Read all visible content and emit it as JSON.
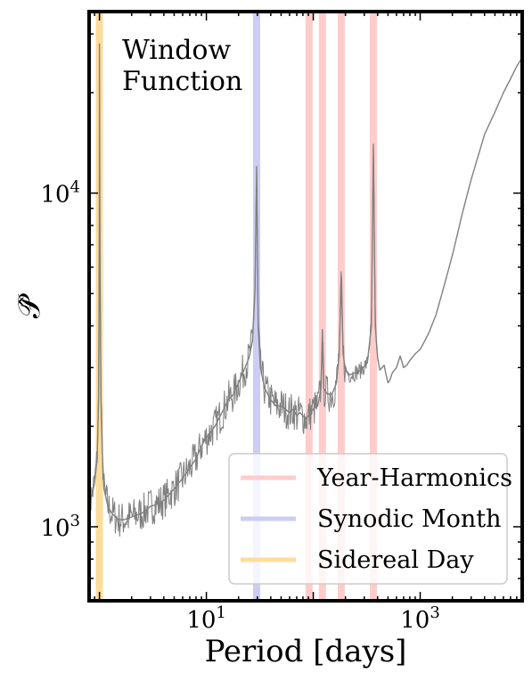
{
  "chart_data": {
    "type": "line",
    "title": "",
    "xlabel": "Period [days]",
    "ylabel": "𝒫̂",
    "xscale": "log",
    "yscale": "log",
    "xlim": [
      0.8,
      9000
    ],
    "ylim": [
      600,
      35000
    ],
    "grid": false,
    "x_ticks": [
      {
        "value": 10,
        "base": "10",
        "exp": "1"
      },
      {
        "value": 1000,
        "base": "10",
        "exp": "3"
      }
    ],
    "y_ticks": [
      {
        "value": 1000,
        "base": "10",
        "exp": "3"
      },
      {
        "value": 10000,
        "base": "10",
        "exp": "4"
      }
    ],
    "annotation": {
      "lines": [
        "Window",
        "Function"
      ]
    },
    "legend": {
      "position": "bottom-right",
      "entries": [
        {
          "label": "Year-Harmonics",
          "color": "#ffcccc"
        },
        {
          "label": "Synodic Month",
          "color": "#ccccf5"
        },
        {
          "label": "Sidereal Day",
          "color": "#fddc9c"
        }
      ]
    },
    "vertical_bands": [
      {
        "group": "Sidereal Day",
        "color": "#fddc9c",
        "x": 0.9973
      },
      {
        "group": "Synodic Month",
        "color": "#ccccf5",
        "x": 29.53
      },
      {
        "group": "Year-Harmonics",
        "color": "#ffcccc",
        "x": 91.3
      },
      {
        "group": "Year-Harmonics",
        "color": "#ffcccc",
        "x": 121.75
      },
      {
        "group": "Year-Harmonics",
        "color": "#ffcccc",
        "x": 182.6
      },
      {
        "group": "Year-Harmonics",
        "color": "#ffcccc",
        "x": 365.25
      }
    ],
    "series": [
      {
        "color": "#808080",
        "x": [
          0.8,
          0.85,
          0.9,
          0.95,
          0.98,
          0.99,
          0.997,
          1.0,
          1.01,
          1.03,
          1.06,
          1.1,
          1.2,
          1.3,
          1.5,
          1.7,
          2.0,
          2.5,
          3.0,
          3.5,
          4.0,
          5.0,
          6.0,
          7.0,
          8.0,
          9.0,
          10.0,
          12.0,
          14.0,
          16.0,
          18.0,
          20.0,
          22.0,
          25.0,
          27.0,
          28.5,
          29.53,
          30.5,
          32.0,
          35.0,
          40.0,
          45.0,
          50.0,
          55.0,
          60.0,
          65.0,
          70.0,
          75.0,
          80.0,
          85.0,
          90.0,
          95.0,
          100.0,
          110.0,
          118.0,
          121.75,
          125.0,
          135.0,
          150.0,
          165.0,
          175.0,
          182.6,
          190.0,
          200.0,
          220.0,
          250.0,
          280.0,
          320.0,
          350.0,
          365.25,
          380.0,
          400.0,
          420.0,
          440.0,
          460.0,
          480.0,
          500.0,
          520.0,
          550.0,
          600.0,
          650.0,
          700.0,
          750.0,
          800.0,
          900.0,
          1000.0,
          1100.0,
          1200.0,
          1400.0,
          1600.0,
          2000.0,
          2500.0,
          3000.0,
          4000.0,
          5000.0,
          6000.0,
          7000.0,
          8000.0,
          9000.0
        ],
        "y": [
          1150,
          1250,
          1350,
          1600,
          2400,
          4000,
          9500,
          28000,
          7000,
          2500,
          1700,
          1300,
          1150,
          1100,
          1050,
          1050,
          1070,
          1100,
          1150,
          1170,
          1200,
          1300,
          1400,
          1500,
          1600,
          1750,
          1850,
          2000,
          2200,
          2400,
          2500,
          2700,
          2900,
          3200,
          3600,
          5200,
          12000,
          4000,
          3000,
          2600,
          2400,
          2300,
          2300,
          2250,
          2200,
          2250,
          2150,
          2200,
          2150,
          2100,
          2150,
          2200,
          2250,
          2300,
          2600,
          3900,
          2600,
          2500,
          2500,
          2700,
          3300,
          5600,
          3300,
          2950,
          2850,
          2900,
          2950,
          3100,
          4000,
          14000,
          4000,
          3200,
          2950,
          3000,
          3050,
          2850,
          2700,
          2750,
          2900,
          3000,
          3250,
          3000,
          3050,
          3150,
          3300,
          3400,
          3600,
          3800,
          4300,
          5000,
          6500,
          8800,
          11000,
          15000,
          17500,
          20000,
          22000,
          24000,
          25500
        ]
      }
    ]
  }
}
